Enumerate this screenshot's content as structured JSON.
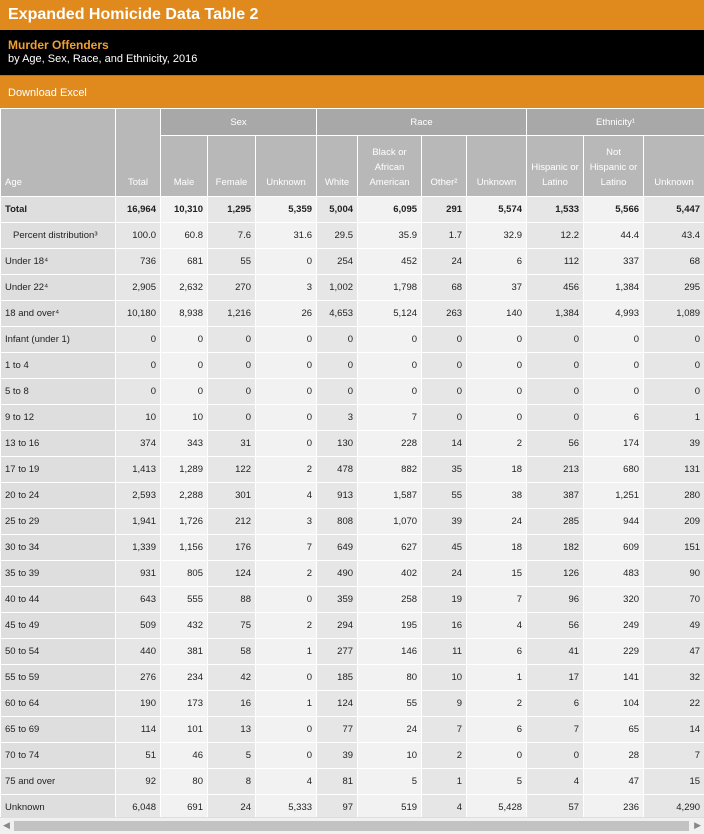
{
  "header": {
    "title": "Expanded Homicide Data Table 2",
    "subtitle": "Murder Offenders",
    "description": "by Age, Sex, Race, and Ethnicity, 2016",
    "download": "Download Excel"
  },
  "table": {
    "groups": [
      "Sex",
      "Race",
      "Ethnicity¹"
    ],
    "columns": [
      "Age",
      "Total",
      "Male",
      "Female",
      "Unknown",
      "White",
      "Black or African American",
      "Other²",
      "Unknown",
      "Hispanic or Latino",
      "Not Hispanic or Latino",
      "Unknown"
    ],
    "rows": [
      [
        "Total",
        "16,964",
        "10,310",
        "1,295",
        "5,359",
        "5,004",
        "6,095",
        "291",
        "5,574",
        "1,533",
        "5,566",
        "5,447"
      ],
      [
        "Percent distribution³",
        "100.0",
        "60.8",
        "7.6",
        "31.6",
        "29.5",
        "35.9",
        "1.7",
        "32.9",
        "12.2",
        "44.4",
        "43.4"
      ],
      [
        "Under 18⁴",
        "736",
        "681",
        "55",
        "0",
        "254",
        "452",
        "24",
        "6",
        "112",
        "337",
        "68"
      ],
      [
        "Under 22⁴",
        "2,905",
        "2,632",
        "270",
        "3",
        "1,002",
        "1,798",
        "68",
        "37",
        "456",
        "1,384",
        "295"
      ],
      [
        "18 and over⁴",
        "10,180",
        "8,938",
        "1,216",
        "26",
        "4,653",
        "5,124",
        "263",
        "140",
        "1,384",
        "4,993",
        "1,089"
      ],
      [
        "Infant (under 1)",
        "0",
        "0",
        "0",
        "0",
        "0",
        "0",
        "0",
        "0",
        "0",
        "0",
        "0"
      ],
      [
        "1 to 4",
        "0",
        "0",
        "0",
        "0",
        "0",
        "0",
        "0",
        "0",
        "0",
        "0",
        "0"
      ],
      [
        "5 to 8",
        "0",
        "0",
        "0",
        "0",
        "0",
        "0",
        "0",
        "0",
        "0",
        "0",
        "0"
      ],
      [
        "9 to 12",
        "10",
        "10",
        "0",
        "0",
        "3",
        "7",
        "0",
        "0",
        "0",
        "6",
        "1"
      ],
      [
        "13 to 16",
        "374",
        "343",
        "31",
        "0",
        "130",
        "228",
        "14",
        "2",
        "56",
        "174",
        "39"
      ],
      [
        "17 to 19",
        "1,413",
        "1,289",
        "122",
        "2",
        "478",
        "882",
        "35",
        "18",
        "213",
        "680",
        "131"
      ],
      [
        "20 to 24",
        "2,593",
        "2,288",
        "301",
        "4",
        "913",
        "1,587",
        "55",
        "38",
        "387",
        "1,251",
        "280"
      ],
      [
        "25 to 29",
        "1,941",
        "1,726",
        "212",
        "3",
        "808",
        "1,070",
        "39",
        "24",
        "285",
        "944",
        "209"
      ],
      [
        "30 to 34",
        "1,339",
        "1,156",
        "176",
        "7",
        "649",
        "627",
        "45",
        "18",
        "182",
        "609",
        "151"
      ],
      [
        "35 to 39",
        "931",
        "805",
        "124",
        "2",
        "490",
        "402",
        "24",
        "15",
        "126",
        "483",
        "90"
      ],
      [
        "40 to 44",
        "643",
        "555",
        "88",
        "0",
        "359",
        "258",
        "19",
        "7",
        "96",
        "320",
        "70"
      ],
      [
        "45 to 49",
        "509",
        "432",
        "75",
        "2",
        "294",
        "195",
        "16",
        "4",
        "56",
        "249",
        "49"
      ],
      [
        "50 to 54",
        "440",
        "381",
        "58",
        "1",
        "277",
        "146",
        "11",
        "6",
        "41",
        "229",
        "47"
      ],
      [
        "55 to 59",
        "276",
        "234",
        "42",
        "0",
        "185",
        "80",
        "10",
        "1",
        "17",
        "141",
        "32"
      ],
      [
        "60 to 64",
        "190",
        "173",
        "16",
        "1",
        "124",
        "55",
        "9",
        "2",
        "6",
        "104",
        "22"
      ],
      [
        "65 to 69",
        "114",
        "101",
        "13",
        "0",
        "77",
        "24",
        "7",
        "6",
        "7",
        "65",
        "14"
      ],
      [
        "70 to 74",
        "51",
        "46",
        "5",
        "0",
        "39",
        "10",
        "2",
        "0",
        "0",
        "28",
        "7"
      ],
      [
        "75 and over",
        "92",
        "80",
        "8",
        "4",
        "81",
        "5",
        "1",
        "5",
        "4",
        "47",
        "15"
      ],
      [
        "Unknown",
        "6,048",
        "691",
        "24",
        "5,333",
        "97",
        "519",
        "4",
        "5,428",
        "57",
        "236",
        "4,290"
      ]
    ]
  }
}
